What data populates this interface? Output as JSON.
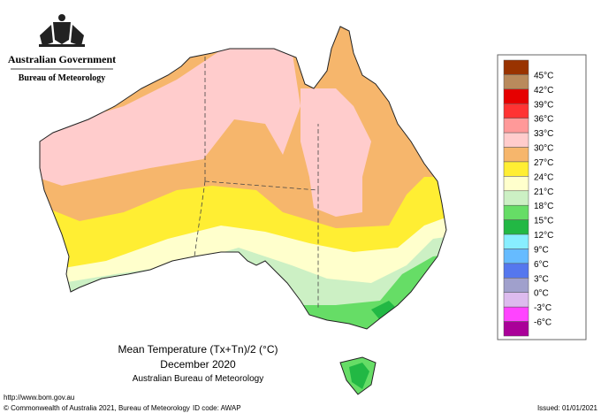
{
  "header": {
    "agency": "Australian Government",
    "bureau": "Bureau of Meteorology"
  },
  "map": {
    "title": "Mean Temperature (Tx+Tn)/2 (°C)",
    "period": "December 2020",
    "source": "Australian Bureau of Meteorology"
  },
  "legend": {
    "labels": [
      "45°C",
      "42°C",
      "39°C",
      "36°C",
      "33°C",
      "30°C",
      "27°C",
      "24°C",
      "21°C",
      "18°C",
      "15°C",
      "12°C",
      "9°C",
      "6°C",
      "3°C",
      "0°C",
      "-3°C",
      "-6°C"
    ],
    "colors": [
      "#993300",
      "#b98a5c",
      "#e60000",
      "#ff3333",
      "#ff9999",
      "#ffcccc",
      "#f6b66c",
      "#ffee33",
      "#ffffcc",
      "#ccf0c4",
      "#66dd66",
      "#22b844",
      "#88eeff",
      "#66bbff",
      "#5577ee",
      "#a0a0cc",
      "#ddbbee",
      "#ff44ff",
      "#aa0099"
    ]
  },
  "footer": {
    "url": "http://www.bom.gov.au",
    "copyright": "© Commonwealth of Australia 2021, Bureau of Meteorology",
    "id_code": "ID code: AWAP",
    "issued": "Issued: 01/01/2021"
  }
}
